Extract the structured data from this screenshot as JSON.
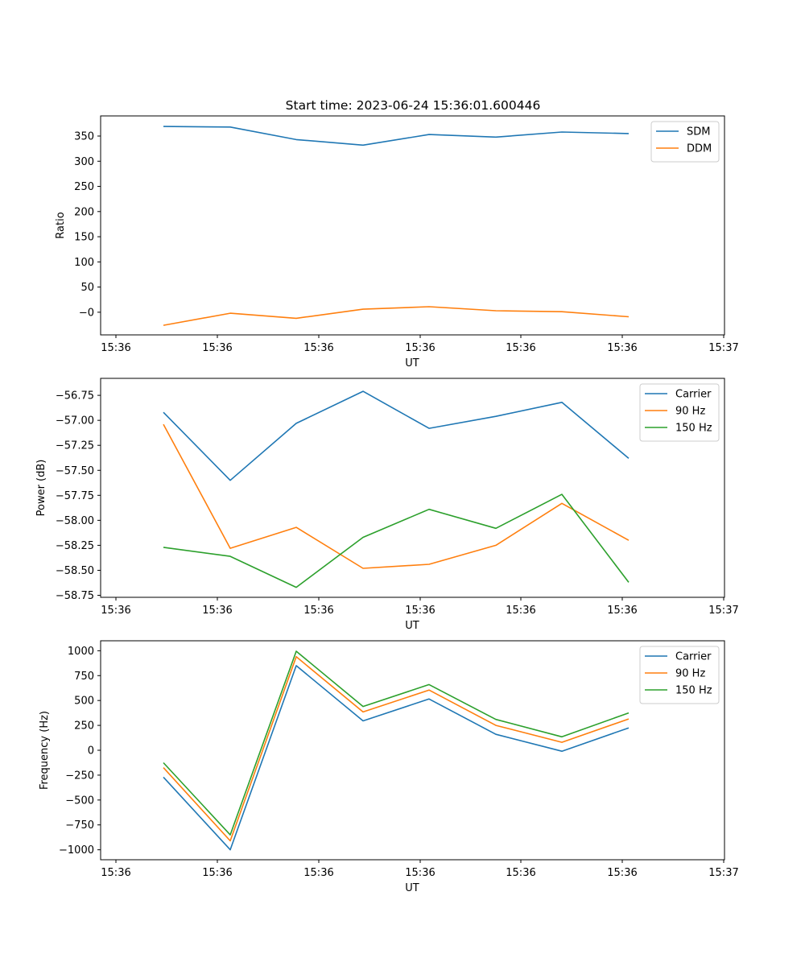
{
  "title": "Start time: 2023-06-24 15:36:01.600446",
  "colors": {
    "blue": "#1f77b4",
    "orange": "#ff7f0e",
    "green": "#2ca02c"
  },
  "chart_data": [
    {
      "type": "line",
      "title": "Start time: 2023-06-24 15:36:01.600446",
      "xlabel": "UT",
      "ylabel": "Ratio",
      "x_tick_labels": [
        "15:36",
        "15:36",
        "15:36",
        "15:36",
        "15:36",
        "15:36",
        "15:36"
      ],
      "x_tick_extra": "15:37",
      "y_ticks": [
        "−0",
        "50",
        "100",
        "150",
        "200",
        "250",
        "300",
        "350"
      ],
      "ylim": [
        -45,
        390
      ],
      "y_tick_values": [
        0,
        50,
        100,
        150,
        200,
        250,
        300,
        350
      ],
      "grid": false,
      "legend_placement": "upper right",
      "series": [
        {
          "name": "SDM",
          "color": "#1f77b4",
          "values": [
            369,
            368,
            343,
            332,
            353,
            348,
            358,
            355
          ]
        },
        {
          "name": "DDM",
          "color": "#ff7f0e",
          "values": [
            -26,
            -2,
            -12,
            6,
            11,
            3,
            1,
            -9
          ]
        }
      ]
    },
    {
      "type": "line",
      "xlabel": "UT",
      "ylabel": "Power (dB)",
      "x_tick_labels": [
        "15:36",
        "15:36",
        "15:36",
        "15:36",
        "15:36",
        "15:36",
        "15:36"
      ],
      "x_tick_extra": "15:37",
      "y_ticks": [
        "−56.75",
        "−57.00",
        "−57.25",
        "−57.50",
        "−57.75",
        "−58.00",
        "−58.25",
        "−58.50",
        "−58.75"
      ],
      "y_tick_values": [
        -56.75,
        -57.0,
        -57.25,
        -57.5,
        -57.75,
        -58.0,
        -58.25,
        -58.5,
        -58.75
      ],
      "ylim": [
        -58.77,
        -56.58
      ],
      "grid": false,
      "legend_placement": "upper right",
      "series": [
        {
          "name": "Carrier",
          "color": "#1f77b4",
          "values": [
            -56.92,
            -57.6,
            -57.03,
            -56.71,
            -57.08,
            -56.96,
            -56.82,
            -57.38
          ]
        },
        {
          "name": "90 Hz",
          "color": "#ff7f0e",
          "values": [
            -57.04,
            -58.28,
            -58.07,
            -58.48,
            -58.44,
            -58.25,
            -57.83,
            -58.2
          ]
        },
        {
          "name": "150 Hz",
          "color": "#2ca02c",
          "values": [
            -58.27,
            -58.36,
            -58.67,
            -58.17,
            -57.89,
            -58.08,
            -57.74,
            -58.62
          ]
        }
      ]
    },
    {
      "type": "line",
      "xlabel": "UT",
      "ylabel": "Frequency (Hz)",
      "x_tick_labels": [
        "15:36",
        "15:36",
        "15:36",
        "15:36",
        "15:36",
        "15:36",
        "15:36"
      ],
      "x_tick_extra": "15:37",
      "y_ticks": [
        "1000",
        "750",
        "500",
        "250",
        "0",
        "−250",
        "−500",
        "−750",
        "−1000"
      ],
      "y_tick_values": [
        1000,
        750,
        500,
        250,
        0,
        -250,
        -500,
        -750,
        -1000
      ],
      "ylim": [
        -1100,
        1100
      ],
      "grid": false,
      "legend_placement": "upper right",
      "series": [
        {
          "name": "Carrier",
          "color": "#1f77b4",
          "values": [
            -270,
            -1000,
            850,
            295,
            515,
            160,
            -10,
            225
          ]
        },
        {
          "name": "90 Hz",
          "color": "#ff7f0e",
          "values": [
            -175,
            -910,
            940,
            385,
            605,
            250,
            80,
            315
          ]
        },
        {
          "name": "150 Hz",
          "color": "#2ca02c",
          "values": [
            -125,
            -850,
            995,
            440,
            660,
            310,
            135,
            375
          ]
        }
      ]
    }
  ]
}
